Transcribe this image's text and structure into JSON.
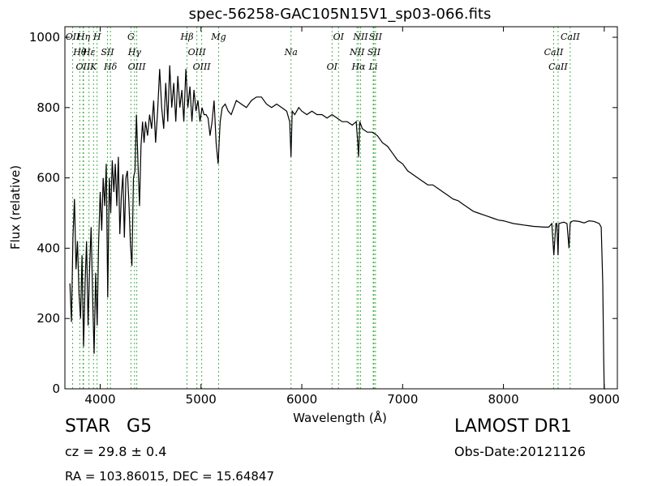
{
  "chart_data": {
    "type": "line",
    "title": "spec-56258-GAC105N15V1_sp03-066.fits",
    "xlabel": "Wavelength (Å)",
    "ylabel": "Flux (relative)",
    "xlim": [
      3650,
      9130
    ],
    "ylim": [
      0,
      1030
    ],
    "grid": false,
    "x_ticks": [
      4000,
      5000,
      6000,
      7000,
      8000,
      9000
    ],
    "y_ticks": [
      0,
      200,
      400,
      600,
      800,
      1000
    ],
    "line_color": "#000000",
    "emission_line_color": "#4caf50",
    "series": [
      {
        "x": [
          3700,
          3715,
          3730,
          3745,
          3760,
          3775,
          3790,
          3805,
          3820,
          3835,
          3850,
          3865,
          3880,
          3895,
          3910,
          3925,
          3940,
          3955,
          3970,
          3985,
          4000,
          4015,
          4030,
          4045,
          4060,
          4075,
          4090,
          4105,
          4120,
          4135,
          4150,
          4165,
          4180,
          4195,
          4210,
          4225,
          4240,
          4255,
          4270,
          4285,
          4300,
          4315,
          4330,
          4345,
          4360,
          4375,
          4390,
          4405,
          4420,
          4435,
          4450,
          4470,
          4490,
          4510,
          4530,
          4550,
          4570,
          4590,
          4610,
          4630,
          4650,
          4670,
          4690,
          4710,
          4730,
          4750,
          4770,
          4790,
          4810,
          4830,
          4850,
          4870,
          4890,
          4910,
          4930,
          4950,
          4970,
          4990,
          5010,
          5030,
          5050,
          5070,
          5090,
          5110,
          5130,
          5150,
          5170,
          5180,
          5190,
          5210,
          5240,
          5270,
          5300,
          5350,
          5400,
          5450,
          5500,
          5550,
          5600,
          5650,
          5700,
          5750,
          5800,
          5850,
          5880,
          5893,
          5905,
          5930,
          5970,
          6000,
          6050,
          6100,
          6150,
          6200,
          6250,
          6300,
          6350,
          6400,
          6450,
          6500,
          6540,
          6555,
          6563,
          6575,
          6600,
          6650,
          6700,
          6750,
          6800,
          6850,
          6900,
          6950,
          7000,
          7050,
          7100,
          7150,
          7200,
          7250,
          7300,
          7350,
          7400,
          7450,
          7500,
          7550,
          7600,
          7650,
          7700,
          7750,
          7800,
          7850,
          7900,
          7950,
          8000,
          8050,
          8100,
          8150,
          8200,
          8250,
          8300,
          8350,
          8400,
          8450,
          8480,
          8500,
          8520,
          8530,
          8542,
          8550,
          8570,
          8600,
          8630,
          8650,
          8662,
          8675,
          8700,
          8750,
          8800,
          8850,
          8900,
          8950,
          8970,
          8985,
          8995,
          9000,
          9005,
          9010
        ],
        "y": [
          300,
          190,
          430,
          540,
          340,
          420,
          270,
          200,
          380,
          120,
          300,
          420,
          180,
          340,
          460,
          260,
          100,
          330,
          180,
          420,
          560,
          450,
          600,
          520,
          640,
          260,
          600,
          500,
          650,
          560,
          640,
          520,
          660,
          440,
          550,
          610,
          430,
          600,
          620,
          530,
          410,
          350,
          600,
          620,
          780,
          640,
          520,
          690,
          760,
          700,
          760,
          720,
          780,
          740,
          820,
          700,
          790,
          910,
          800,
          740,
          870,
          760,
          920,
          800,
          870,
          760,
          890,
          800,
          850,
          760,
          910,
          800,
          860,
          760,
          850,
          790,
          820,
          760,
          800,
          780,
          780,
          770,
          720,
          760,
          820,
          700,
          640,
          700,
          760,
          800,
          810,
          790,
          780,
          820,
          810,
          800,
          820,
          830,
          830,
          810,
          800,
          810,
          800,
          790,
          760,
          660,
          790,
          780,
          800,
          790,
          780,
          790,
          780,
          780,
          770,
          780,
          770,
          760,
          760,
          750,
          760,
          700,
          660,
          760,
          740,
          730,
          730,
          720,
          700,
          690,
          670,
          650,
          640,
          620,
          610,
          600,
          590,
          580,
          580,
          570,
          560,
          550,
          540,
          535,
          525,
          515,
          505,
          500,
          495,
          490,
          485,
          480,
          478,
          474,
          470,
          468,
          466,
          464,
          462,
          461,
          460,
          460,
          470,
          380,
          470,
          470,
          380,
          470,
          472,
          474,
          470,
          400,
          470,
          476,
          478,
          476,
          472,
          478,
          476,
          470,
          460,
          300,
          80,
          0,
          0,
          0
        ]
      }
    ],
    "emission_lines": [
      {
        "label": "OII",
        "x": 3727
      },
      {
        "label": "Hθ",
        "x": 3798
      },
      {
        "label": "OII",
        "x": 3830
      },
      {
        "label": "Hη",
        "x": 3835
      },
      {
        "label": "Hε",
        "x": 3889
      },
      {
        "label": "K",
        "x": 3934
      },
      {
        "label": "H",
        "x": 3969
      },
      {
        "label": "SII",
        "x": 4072
      },
      {
        "label": "Hδ",
        "x": 4102
      },
      {
        "label": "G",
        "x": 4305
      },
      {
        "label": "Hγ",
        "x": 4341
      },
      {
        "label": "OIII",
        "x": 4363
      },
      {
        "label": "Hβ",
        "x": 4861
      },
      {
        "label": "OIII",
        "x": 4959
      },
      {
        "label": "OIII",
        "x": 5007
      },
      {
        "label": "Mg",
        "x": 5175
      },
      {
        "label": "Na",
        "x": 5893
      },
      {
        "label": "OI",
        "x": 6300
      },
      {
        "label": "OI",
        "x": 6364
      },
      {
        "label": "NII",
        "x": 6548
      },
      {
        "label": "Hα",
        "x": 6563
      },
      {
        "label": "NII",
        "x": 6583
      },
      {
        "label": "SII",
        "x": 6716
      },
      {
        "label": "Li",
        "x": 6708
      },
      {
        "label": "SII",
        "x": 6731
      },
      {
        "label": "CaII",
        "x": 8498
      },
      {
        "label": "CaII",
        "x": 8542
      },
      {
        "label": "CaII",
        "x": 8662
      }
    ]
  },
  "info": {
    "object_type": "STAR",
    "subclass": "G5",
    "survey": "LAMOST DR1",
    "redshift": "cz = 29.8  ± 0.4",
    "obs_date": "Obs-Date:20121126",
    "coords": "RA = 103.86015, DEC = 15.64847"
  }
}
